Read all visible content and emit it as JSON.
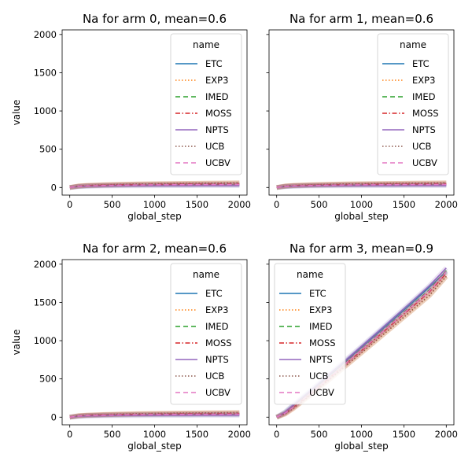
{
  "chart_data": [
    {
      "type": "line",
      "title": "Na for arm 0, mean=0.6",
      "xlabel": "global_step",
      "ylabel": "value",
      "xlim": [
        -90,
        2090
      ],
      "ylim": [
        -100,
        2060
      ],
      "xticks": [
        0,
        500,
        1000,
        1500,
        2000
      ],
      "yticks": [
        0,
        500,
        1000,
        1500,
        2000
      ],
      "show_ytick_labels": true,
      "legend": {
        "title": "name",
        "position": "top-right"
      },
      "x": [
        0,
        100,
        200,
        400,
        600,
        800,
        1000,
        1200,
        1400,
        1600,
        1800,
        2000
      ],
      "series": [
        {
          "name": "ETC",
          "color": "#1f77b4",
          "dash": "solid",
          "values": [
            0,
            12,
            18,
            25,
            28,
            30,
            31,
            32,
            32,
            33,
            33,
            33
          ]
        },
        {
          "name": "EXP3",
          "color": "#ff7f0e",
          "dash": "dotted",
          "values": [
            0,
            20,
            28,
            36,
            42,
            46,
            49,
            52,
            54,
            56,
            58,
            60
          ]
        },
        {
          "name": "IMED",
          "color": "#2ca02c",
          "dash": "dashed",
          "values": [
            0,
            15,
            22,
            28,
            32,
            35,
            37,
            38,
            39,
            40,
            41,
            42
          ]
        },
        {
          "name": "MOSS",
          "color": "#d62728",
          "dash": "dashdot",
          "values": [
            0,
            16,
            24,
            31,
            36,
            39,
            42,
            44,
            45,
            46,
            47,
            48
          ]
        },
        {
          "name": "NPTS",
          "color": "#9467bd",
          "dash": "solid",
          "values": [
            0,
            10,
            14,
            18,
            20,
            21,
            22,
            23,
            23,
            24,
            24,
            24
          ]
        },
        {
          "name": "UCB",
          "color": "#8c564b",
          "dash": "dotted",
          "values": [
            0,
            18,
            26,
            34,
            40,
            45,
            49,
            52,
            54,
            56,
            58,
            60
          ]
        },
        {
          "name": "UCBV",
          "color": "#e377c2",
          "dash": "dashed",
          "values": [
            0,
            14,
            20,
            26,
            30,
            33,
            35,
            36,
            37,
            38,
            38,
            39
          ]
        }
      ]
    },
    {
      "type": "line",
      "title": "Na for arm 1, mean=0.6",
      "xlabel": "global_step",
      "ylabel": "",
      "xlim": [
        -90,
        2090
      ],
      "ylim": [
        -100,
        2060
      ],
      "xticks": [
        0,
        500,
        1000,
        1500,
        2000
      ],
      "yticks": [
        0,
        500,
        1000,
        1500,
        2000
      ],
      "show_ytick_labels": false,
      "legend": {
        "title": "name",
        "position": "top-right"
      },
      "x": [
        0,
        100,
        200,
        400,
        600,
        800,
        1000,
        1200,
        1400,
        1600,
        1800,
        2000
      ],
      "series": [
        {
          "name": "ETC",
          "color": "#1f77b4",
          "dash": "solid",
          "values": [
            0,
            12,
            18,
            25,
            28,
            30,
            31,
            32,
            32,
            33,
            33,
            33
          ]
        },
        {
          "name": "EXP3",
          "color": "#ff7f0e",
          "dash": "dotted",
          "values": [
            0,
            20,
            28,
            36,
            42,
            46,
            49,
            52,
            54,
            56,
            58,
            60
          ]
        },
        {
          "name": "IMED",
          "color": "#2ca02c",
          "dash": "dashed",
          "values": [
            0,
            15,
            22,
            28,
            32,
            35,
            37,
            38,
            39,
            40,
            41,
            42
          ]
        },
        {
          "name": "MOSS",
          "color": "#d62728",
          "dash": "dashdot",
          "values": [
            0,
            16,
            24,
            31,
            36,
            39,
            42,
            44,
            45,
            46,
            47,
            48
          ]
        },
        {
          "name": "NPTS",
          "color": "#9467bd",
          "dash": "solid",
          "values": [
            0,
            10,
            14,
            18,
            20,
            21,
            22,
            23,
            23,
            24,
            24,
            24
          ]
        },
        {
          "name": "UCB",
          "color": "#8c564b",
          "dash": "dotted",
          "values": [
            0,
            18,
            26,
            34,
            40,
            45,
            49,
            52,
            54,
            56,
            58,
            60
          ]
        },
        {
          "name": "UCBV",
          "color": "#e377c2",
          "dash": "dashed",
          "values": [
            0,
            14,
            20,
            26,
            30,
            33,
            35,
            36,
            37,
            38,
            38,
            39
          ]
        }
      ]
    },
    {
      "type": "line",
      "title": "Na for arm 2, mean=0.6",
      "xlabel": "global_step",
      "ylabel": "value",
      "xlim": [
        -90,
        2090
      ],
      "ylim": [
        -100,
        2060
      ],
      "xticks": [
        0,
        500,
        1000,
        1500,
        2000
      ],
      "yticks": [
        0,
        500,
        1000,
        1500,
        2000
      ],
      "show_ytick_labels": true,
      "legend": {
        "title": "name",
        "position": "top-right"
      },
      "x": [
        0,
        100,
        200,
        400,
        600,
        800,
        1000,
        1200,
        1400,
        1600,
        1800,
        2000
      ],
      "series": [
        {
          "name": "ETC",
          "color": "#1f77b4",
          "dash": "solid",
          "values": [
            0,
            12,
            18,
            25,
            28,
            30,
            31,
            32,
            32,
            33,
            33,
            33
          ]
        },
        {
          "name": "EXP3",
          "color": "#ff7f0e",
          "dash": "dotted",
          "values": [
            0,
            20,
            28,
            36,
            42,
            46,
            49,
            52,
            54,
            56,
            58,
            60
          ]
        },
        {
          "name": "IMED",
          "color": "#2ca02c",
          "dash": "dashed",
          "values": [
            0,
            15,
            22,
            28,
            32,
            35,
            37,
            38,
            39,
            40,
            41,
            42
          ]
        },
        {
          "name": "MOSS",
          "color": "#d62728",
          "dash": "dashdot",
          "values": [
            0,
            16,
            24,
            31,
            36,
            39,
            42,
            44,
            45,
            46,
            47,
            48
          ]
        },
        {
          "name": "NPTS",
          "color": "#9467bd",
          "dash": "solid",
          "values": [
            0,
            10,
            14,
            18,
            20,
            21,
            22,
            23,
            23,
            24,
            24,
            24
          ]
        },
        {
          "name": "UCB",
          "color": "#8c564b",
          "dash": "dotted",
          "values": [
            0,
            18,
            26,
            34,
            40,
            45,
            49,
            52,
            54,
            56,
            58,
            60
          ]
        },
        {
          "name": "UCBV",
          "color": "#e377c2",
          "dash": "dashed",
          "values": [
            0,
            14,
            20,
            26,
            30,
            33,
            35,
            36,
            37,
            38,
            38,
            39
          ]
        }
      ]
    },
    {
      "type": "line",
      "title": "Na for arm 3, mean=0.9",
      "xlabel": "global_step",
      "ylabel": "",
      "xlim": [
        -90,
        2090
      ],
      "ylim": [
        -100,
        2060
      ],
      "xticks": [
        0,
        500,
        1000,
        1500,
        2000
      ],
      "yticks": [
        0,
        500,
        1000,
        1500,
        2000
      ],
      "show_ytick_labels": false,
      "legend": {
        "title": "name",
        "position": "top-left"
      },
      "x": [
        0,
        100,
        200,
        400,
        600,
        800,
        1000,
        1200,
        1400,
        1600,
        1800,
        2000
      ],
      "series": [
        {
          "name": "ETC",
          "color": "#1f77b4",
          "dash": "solid",
          "values": [
            0,
            64,
            156,
            338,
            528,
            718,
            912,
            1106,
            1300,
            1496,
            1700,
            1903
          ]
        },
        {
          "name": "EXP3",
          "color": "#ff7f0e",
          "dash": "dotted",
          "values": [
            0,
            40,
            115,
            290,
            470,
            655,
            840,
            1025,
            1212,
            1400,
            1588,
            1840
          ]
        },
        {
          "name": "IMED",
          "color": "#2ca02c",
          "dash": "dashed",
          "values": [
            0,
            55,
            140,
            320,
            507,
            697,
            887,
            1080,
            1274,
            1468,
            1663,
            1917
          ]
        },
        {
          "name": "MOSS",
          "color": "#d62728",
          "dash": "dashdot",
          "values": [
            0,
            50,
            130,
            308,
            493,
            682,
            870,
            1060,
            1252,
            1444,
            1636,
            1880
          ]
        },
        {
          "name": "NPTS",
          "color": "#9467bd",
          "dash": "solid",
          "values": [
            0,
            70,
            165,
            350,
            542,
            734,
            928,
            1123,
            1320,
            1518,
            1717,
            1950
          ]
        },
        {
          "name": "UCB",
          "color": "#8c564b",
          "dash": "dotted",
          "values": [
            0,
            42,
            118,
            292,
            472,
            658,
            843,
            1028,
            1215,
            1403,
            1590,
            1840
          ]
        },
        {
          "name": "UCBV",
          "color": "#e377c2",
          "dash": "dashed",
          "values": [
            0,
            52,
            135,
            314,
            500,
            690,
            880,
            1071,
            1264,
            1457,
            1650,
            1905
          ]
        }
      ]
    }
  ]
}
